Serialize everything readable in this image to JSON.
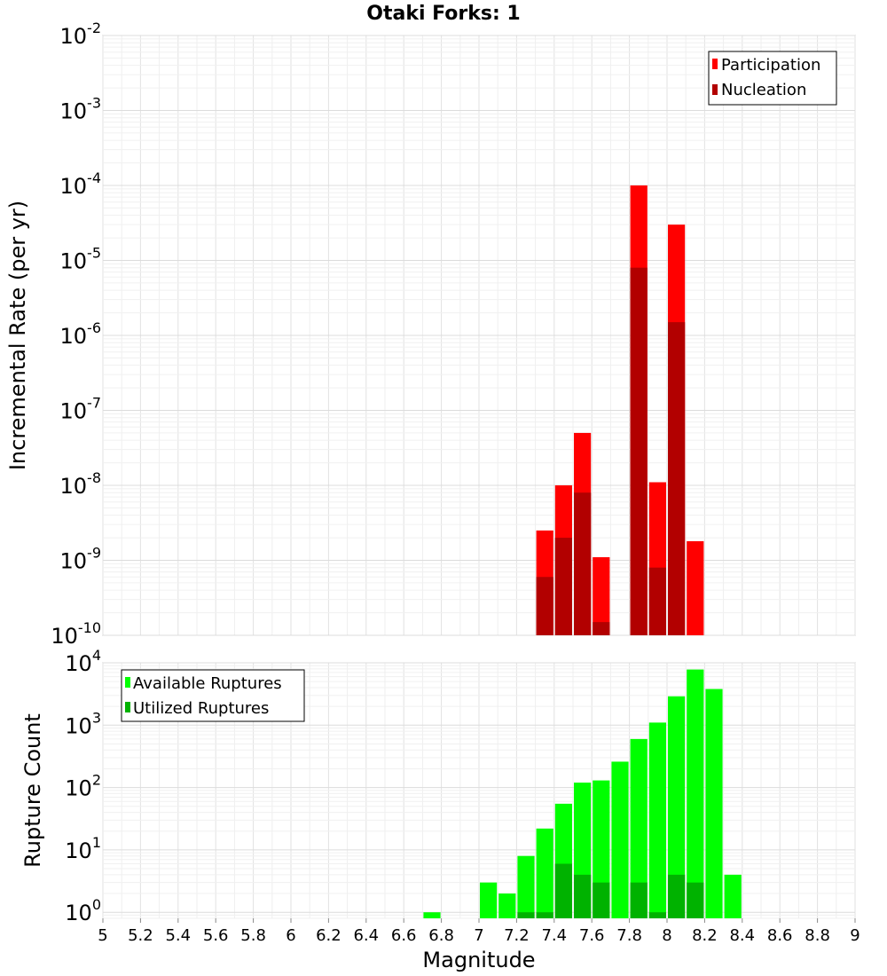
{
  "chart_data": [
    {
      "type": "bar",
      "title": "Otaki Forks: 1",
      "xlabel": "Magnitude",
      "ylabel": "Incremental Rate (per yr)",
      "yscale": "log",
      "ylim": [
        1e-10,
        0.01
      ],
      "xlim": [
        5,
        9
      ],
      "grid": true,
      "legend_position": "top-right",
      "colors": {
        "Participation": "#ff0000",
        "Nucleation": "#b20000"
      },
      "series": [
        {
          "name": "Participation",
          "x": [
            7.35,
            7.45,
            7.55,
            7.65,
            7.85,
            7.95,
            8.05,
            8.15
          ],
          "values": [
            2.5e-09,
            1e-08,
            5e-08,
            1.1e-09,
            0.0001,
            1.1e-08,
            3e-05,
            1.8e-09
          ]
        },
        {
          "name": "Nucleation",
          "x": [
            7.35,
            7.45,
            7.55,
            7.65,
            7.85,
            7.95,
            8.05
          ],
          "values": [
            6e-10,
            2e-09,
            8e-09,
            1.5e-10,
            8e-06,
            8e-10,
            1.5e-06
          ]
        }
      ]
    },
    {
      "type": "bar",
      "xlabel": "Magnitude",
      "ylabel": "Rupture Count",
      "yscale": "log",
      "ylim": [
        0.8,
        10000
      ],
      "xlim": [
        5,
        9
      ],
      "xticks": [
        "5",
        "5.2",
        "5.4",
        "5.6",
        "5.8",
        "6",
        "6.2",
        "6.4",
        "6.6",
        "6.8",
        "7",
        "7.2",
        "7.4",
        "7.6",
        "7.8",
        "8",
        "8.2",
        "8.4",
        "8.6",
        "8.8",
        "9"
      ],
      "grid": true,
      "legend_position": "top-left",
      "colors": {
        "Available Ruptures": "#00ff00",
        "Utilized Ruptures": "#00b200"
      },
      "series": [
        {
          "name": "Available Ruptures",
          "x": [
            6.75,
            7.05,
            7.15,
            7.25,
            7.35,
            7.45,
            7.55,
            7.65,
            7.75,
            7.85,
            7.95,
            8.05,
            8.15,
            8.25,
            8.35
          ],
          "values": [
            1,
            3,
            2,
            8,
            22,
            55,
            120,
            130,
            260,
            600,
            1100,
            2900,
            7800,
            3800,
            4
          ]
        },
        {
          "name": "Utilized Ruptures",
          "x": [
            7.25,
            7.35,
            7.45,
            7.55,
            7.65,
            7.85,
            7.95,
            8.05,
            8.15
          ],
          "values": [
            1,
            1,
            6,
            4,
            3,
            3,
            1,
            4,
            3
          ]
        }
      ]
    }
  ]
}
